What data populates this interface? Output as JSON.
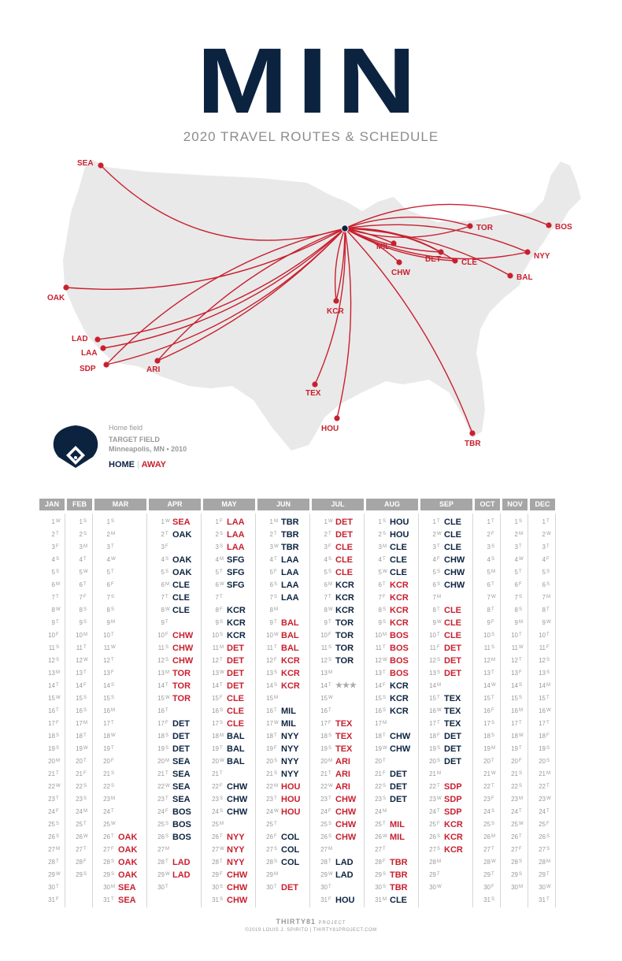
{
  "title": "MIN",
  "subtitle": "2020 TRAVEL ROUTES & SCHEDULE",
  "colors": {
    "navy": "#0c2340",
    "red": "#c8202f",
    "gray": "#999999",
    "land": "#e9e9e9"
  },
  "legend": {
    "label": "Home field",
    "field_name": "TARGET FIELD",
    "location": "Minneapolis, MN • 2010",
    "home_label": "HOME",
    "separator": "|",
    "away_label": "AWAY"
  },
  "map": {
    "hub": "MIN",
    "cities": [
      "SEA",
      "OAK",
      "LAD",
      "LAA",
      "SDP",
      "ARI",
      "TEX",
      "HOU",
      "TBR",
      "KCR",
      "CHW",
      "MIL",
      "DET",
      "CLE",
      "TOR",
      "BOS",
      "NYY",
      "BAL"
    ]
  },
  "calendar": {
    "months": [
      {
        "name": "JAN",
        "days": 31,
        "startDow": 3
      },
      {
        "name": "FEB",
        "days": 29,
        "startDow": 6
      },
      {
        "name": "MAR",
        "days": 31,
        "startDow": 0
      },
      {
        "name": "APR",
        "days": 30,
        "startDow": 3
      },
      {
        "name": "MAY",
        "days": 31,
        "startDow": 5
      },
      {
        "name": "JUN",
        "days": 30,
        "startDow": 1
      },
      {
        "name": "JUL",
        "days": 31,
        "startDow": 3
      },
      {
        "name": "AUG",
        "days": 31,
        "startDow": 6
      },
      {
        "name": "SEP",
        "days": 30,
        "startDow": 2
      },
      {
        "name": "OCT",
        "days": 31,
        "startDow": 4
      },
      {
        "name": "NOV",
        "days": 30,
        "startDow": 0
      },
      {
        "name": "DEC",
        "days": 31,
        "startDow": 2
      }
    ],
    "weekday_letters": [
      "S",
      "M",
      "T",
      "W",
      "T",
      "F",
      "S"
    ],
    "allstar_mark": "★★★",
    "games": {
      "MAR": {
        "26": [
          "OAK",
          "a"
        ],
        "27": [
          "OAK",
          "a"
        ],
        "28": [
          "OAK",
          "a"
        ],
        "29": [
          "OAK",
          "a"
        ],
        "30": [
          "SEA",
          "a"
        ],
        "31": [
          "SEA",
          "a"
        ]
      },
      "APR": {
        "1": [
          "SEA",
          "a"
        ],
        "2": [
          "OAK",
          "h"
        ],
        "4": [
          "OAK",
          "h"
        ],
        "5": [
          "OAK",
          "h"
        ],
        "6": [
          "CLE",
          "h"
        ],
        "7": [
          "CLE",
          "h"
        ],
        "8": [
          "CLE",
          "h"
        ],
        "10": [
          "CHW",
          "a"
        ],
        "11": [
          "CHW",
          "a"
        ],
        "12": [
          "CHW",
          "a"
        ],
        "13": [
          "TOR",
          "a"
        ],
        "14": [
          "TOR",
          "a"
        ],
        "15": [
          "TOR",
          "a"
        ],
        "17": [
          "DET",
          "h"
        ],
        "18": [
          "DET",
          "h"
        ],
        "19": [
          "DET",
          "h"
        ],
        "20": [
          "SEA",
          "h"
        ],
        "21": [
          "SEA",
          "h"
        ],
        "22": [
          "SEA",
          "h"
        ],
        "23": [
          "SEA",
          "h"
        ],
        "24": [
          "BOS",
          "h"
        ],
        "25": [
          "BOS",
          "h"
        ],
        "26": [
          "BOS",
          "h"
        ],
        "28": [
          "LAD",
          "a"
        ],
        "29": [
          "LAD",
          "a"
        ]
      },
      "MAY": {
        "1": [
          "LAA",
          "a"
        ],
        "2": [
          "LAA",
          "a"
        ],
        "3": [
          "LAA",
          "a"
        ],
        "4": [
          "SFG",
          "h"
        ],
        "5": [
          "SFG",
          "h"
        ],
        "6": [
          "SFG",
          "h"
        ],
        "8": [
          "KCR",
          "h"
        ],
        "9": [
          "KCR",
          "h"
        ],
        "10": [
          "KCR",
          "h"
        ],
        "11": [
          "DET",
          "a"
        ],
        "12": [
          "DET",
          "a"
        ],
        "13": [
          "DET",
          "a"
        ],
        "14": [
          "DET",
          "a"
        ],
        "15": [
          "CLE",
          "a"
        ],
        "16": [
          "CLE",
          "a"
        ],
        "17": [
          "CLE",
          "a"
        ],
        "18": [
          "BAL",
          "h"
        ],
        "19": [
          "BAL",
          "h"
        ],
        "20": [
          "BAL",
          "h"
        ],
        "22": [
          "CHW",
          "h"
        ],
        "23": [
          "CHW",
          "h"
        ],
        "24": [
          "CHW",
          "h"
        ],
        "26": [
          "NYY",
          "a"
        ],
        "27": [
          "NYY",
          "a"
        ],
        "28": [
          "NYY",
          "a"
        ],
        "29": [
          "CHW",
          "a"
        ],
        "30": [
          "CHW",
          "a"
        ],
        "31": [
          "CHW",
          "a"
        ]
      },
      "JUN": {
        "1": [
          "TBR",
          "h"
        ],
        "2": [
          "TBR",
          "h"
        ],
        "3": [
          "TBR",
          "h"
        ],
        "4": [
          "LAA",
          "h"
        ],
        "5": [
          "LAA",
          "h"
        ],
        "6": [
          "LAA",
          "h"
        ],
        "7": [
          "LAA",
          "h"
        ],
        "9": [
          "BAL",
          "a"
        ],
        "10": [
          "BAL",
          "a"
        ],
        "11": [
          "BAL",
          "a"
        ],
        "12": [
          "KCR",
          "a"
        ],
        "13": [
          "KCR",
          "a"
        ],
        "14": [
          "KCR",
          "a"
        ],
        "16": [
          "MIL",
          "h"
        ],
        "17": [
          "MIL",
          "h"
        ],
        "18": [
          "NYY",
          "h"
        ],
        "19": [
          "NYY",
          "h"
        ],
        "20": [
          "NYY",
          "h"
        ],
        "21": [
          "NYY",
          "h"
        ],
        "22": [
          "HOU",
          "a"
        ],
        "23": [
          "HOU",
          "a"
        ],
        "24": [
          "HOU",
          "a"
        ],
        "26": [
          "COL",
          "h"
        ],
        "27": [
          "COL",
          "h"
        ],
        "28": [
          "COL",
          "h"
        ],
        "30": [
          "DET",
          "a"
        ]
      },
      "JUL": {
        "1": [
          "DET",
          "a"
        ],
        "2": [
          "DET",
          "a"
        ],
        "3": [
          "CLE",
          "a"
        ],
        "4": [
          "CLE",
          "a"
        ],
        "5": [
          "CLE",
          "a"
        ],
        "6": [
          "KCR",
          "h"
        ],
        "7": [
          "KCR",
          "h"
        ],
        "8": [
          "KCR",
          "h"
        ],
        "9": [
          "TOR",
          "h"
        ],
        "10": [
          "TOR",
          "h"
        ],
        "11": [
          "TOR",
          "h"
        ],
        "12": [
          "TOR",
          "h"
        ],
        "17": [
          "TEX",
          "a"
        ],
        "18": [
          "TEX",
          "a"
        ],
        "19": [
          "TEX",
          "a"
        ],
        "20": [
          "ARI",
          "a"
        ],
        "21": [
          "ARI",
          "a"
        ],
        "22": [
          "ARI",
          "a"
        ],
        "23": [
          "CHW",
          "a"
        ],
        "24": [
          "CHW",
          "a"
        ],
        "25": [
          "CHW",
          "a"
        ],
        "26": [
          "CHW",
          "a"
        ],
        "28": [
          "LAD",
          "h"
        ],
        "29": [
          "LAD",
          "h"
        ],
        "31": [
          "HOU",
          "h"
        ]
      },
      "AUG": {
        "1": [
          "HOU",
          "h"
        ],
        "2": [
          "HOU",
          "h"
        ],
        "3": [
          "CLE",
          "h"
        ],
        "4": [
          "CLE",
          "h"
        ],
        "5": [
          "CLE",
          "h"
        ],
        "6": [
          "KCR",
          "a"
        ],
        "7": [
          "KCR",
          "a"
        ],
        "8": [
          "KCR",
          "a"
        ],
        "9": [
          "KCR",
          "a"
        ],
        "10": [
          "BOS",
          "a"
        ],
        "11": [
          "BOS",
          "a"
        ],
        "12": [
          "BOS",
          "a"
        ],
        "13": [
          "BOS",
          "a"
        ],
        "14": [
          "KCR",
          "h"
        ],
        "15": [
          "KCR",
          "h"
        ],
        "16": [
          "KCR",
          "h"
        ],
        "18": [
          "CHW",
          "h"
        ],
        "19": [
          "CHW",
          "h"
        ],
        "21": [
          "DET",
          "h"
        ],
        "22": [
          "DET",
          "h"
        ],
        "23": [
          "DET",
          "h"
        ],
        "25": [
          "MIL",
          "a"
        ],
        "26": [
          "MIL",
          "a"
        ],
        "28": [
          "TBR",
          "a"
        ],
        "29": [
          "TBR",
          "a"
        ],
        "30": [
          "TBR",
          "a"
        ],
        "31": [
          "CLE",
          "h"
        ]
      },
      "SEP": {
        "1": [
          "CLE",
          "h"
        ],
        "2": [
          "CLE",
          "h"
        ],
        "3": [
          "CLE",
          "h"
        ],
        "4": [
          "CHW",
          "h"
        ],
        "5": [
          "CHW",
          "h"
        ],
        "6": [
          "CHW",
          "h"
        ],
        "8": [
          "CLE",
          "a"
        ],
        "9": [
          "CLE",
          "a"
        ],
        "10": [
          "CLE",
          "a"
        ],
        "11": [
          "DET",
          "a"
        ],
        "12": [
          "DET",
          "a"
        ],
        "13": [
          "DET",
          "a"
        ],
        "15": [
          "TEX",
          "h"
        ],
        "16": [
          "TEX",
          "h"
        ],
        "17": [
          "TEX",
          "h"
        ],
        "18": [
          "DET",
          "h"
        ],
        "19": [
          "DET",
          "h"
        ],
        "20": [
          "DET",
          "h"
        ],
        "22": [
          "SDP",
          "a"
        ],
        "23": [
          "SDP",
          "a"
        ],
        "24": [
          "SDP",
          "a"
        ],
        "25": [
          "KCR",
          "a"
        ],
        "26": [
          "KCR",
          "a"
        ],
        "27": [
          "KCR",
          "a"
        ]
      }
    }
  },
  "credits": {
    "brand": "THIRTY81",
    "brand_suffix": "PROJECT",
    "copyright": "©2019 LOUIS J. SPIRITO | THIRTY81PROJECT.COM"
  }
}
